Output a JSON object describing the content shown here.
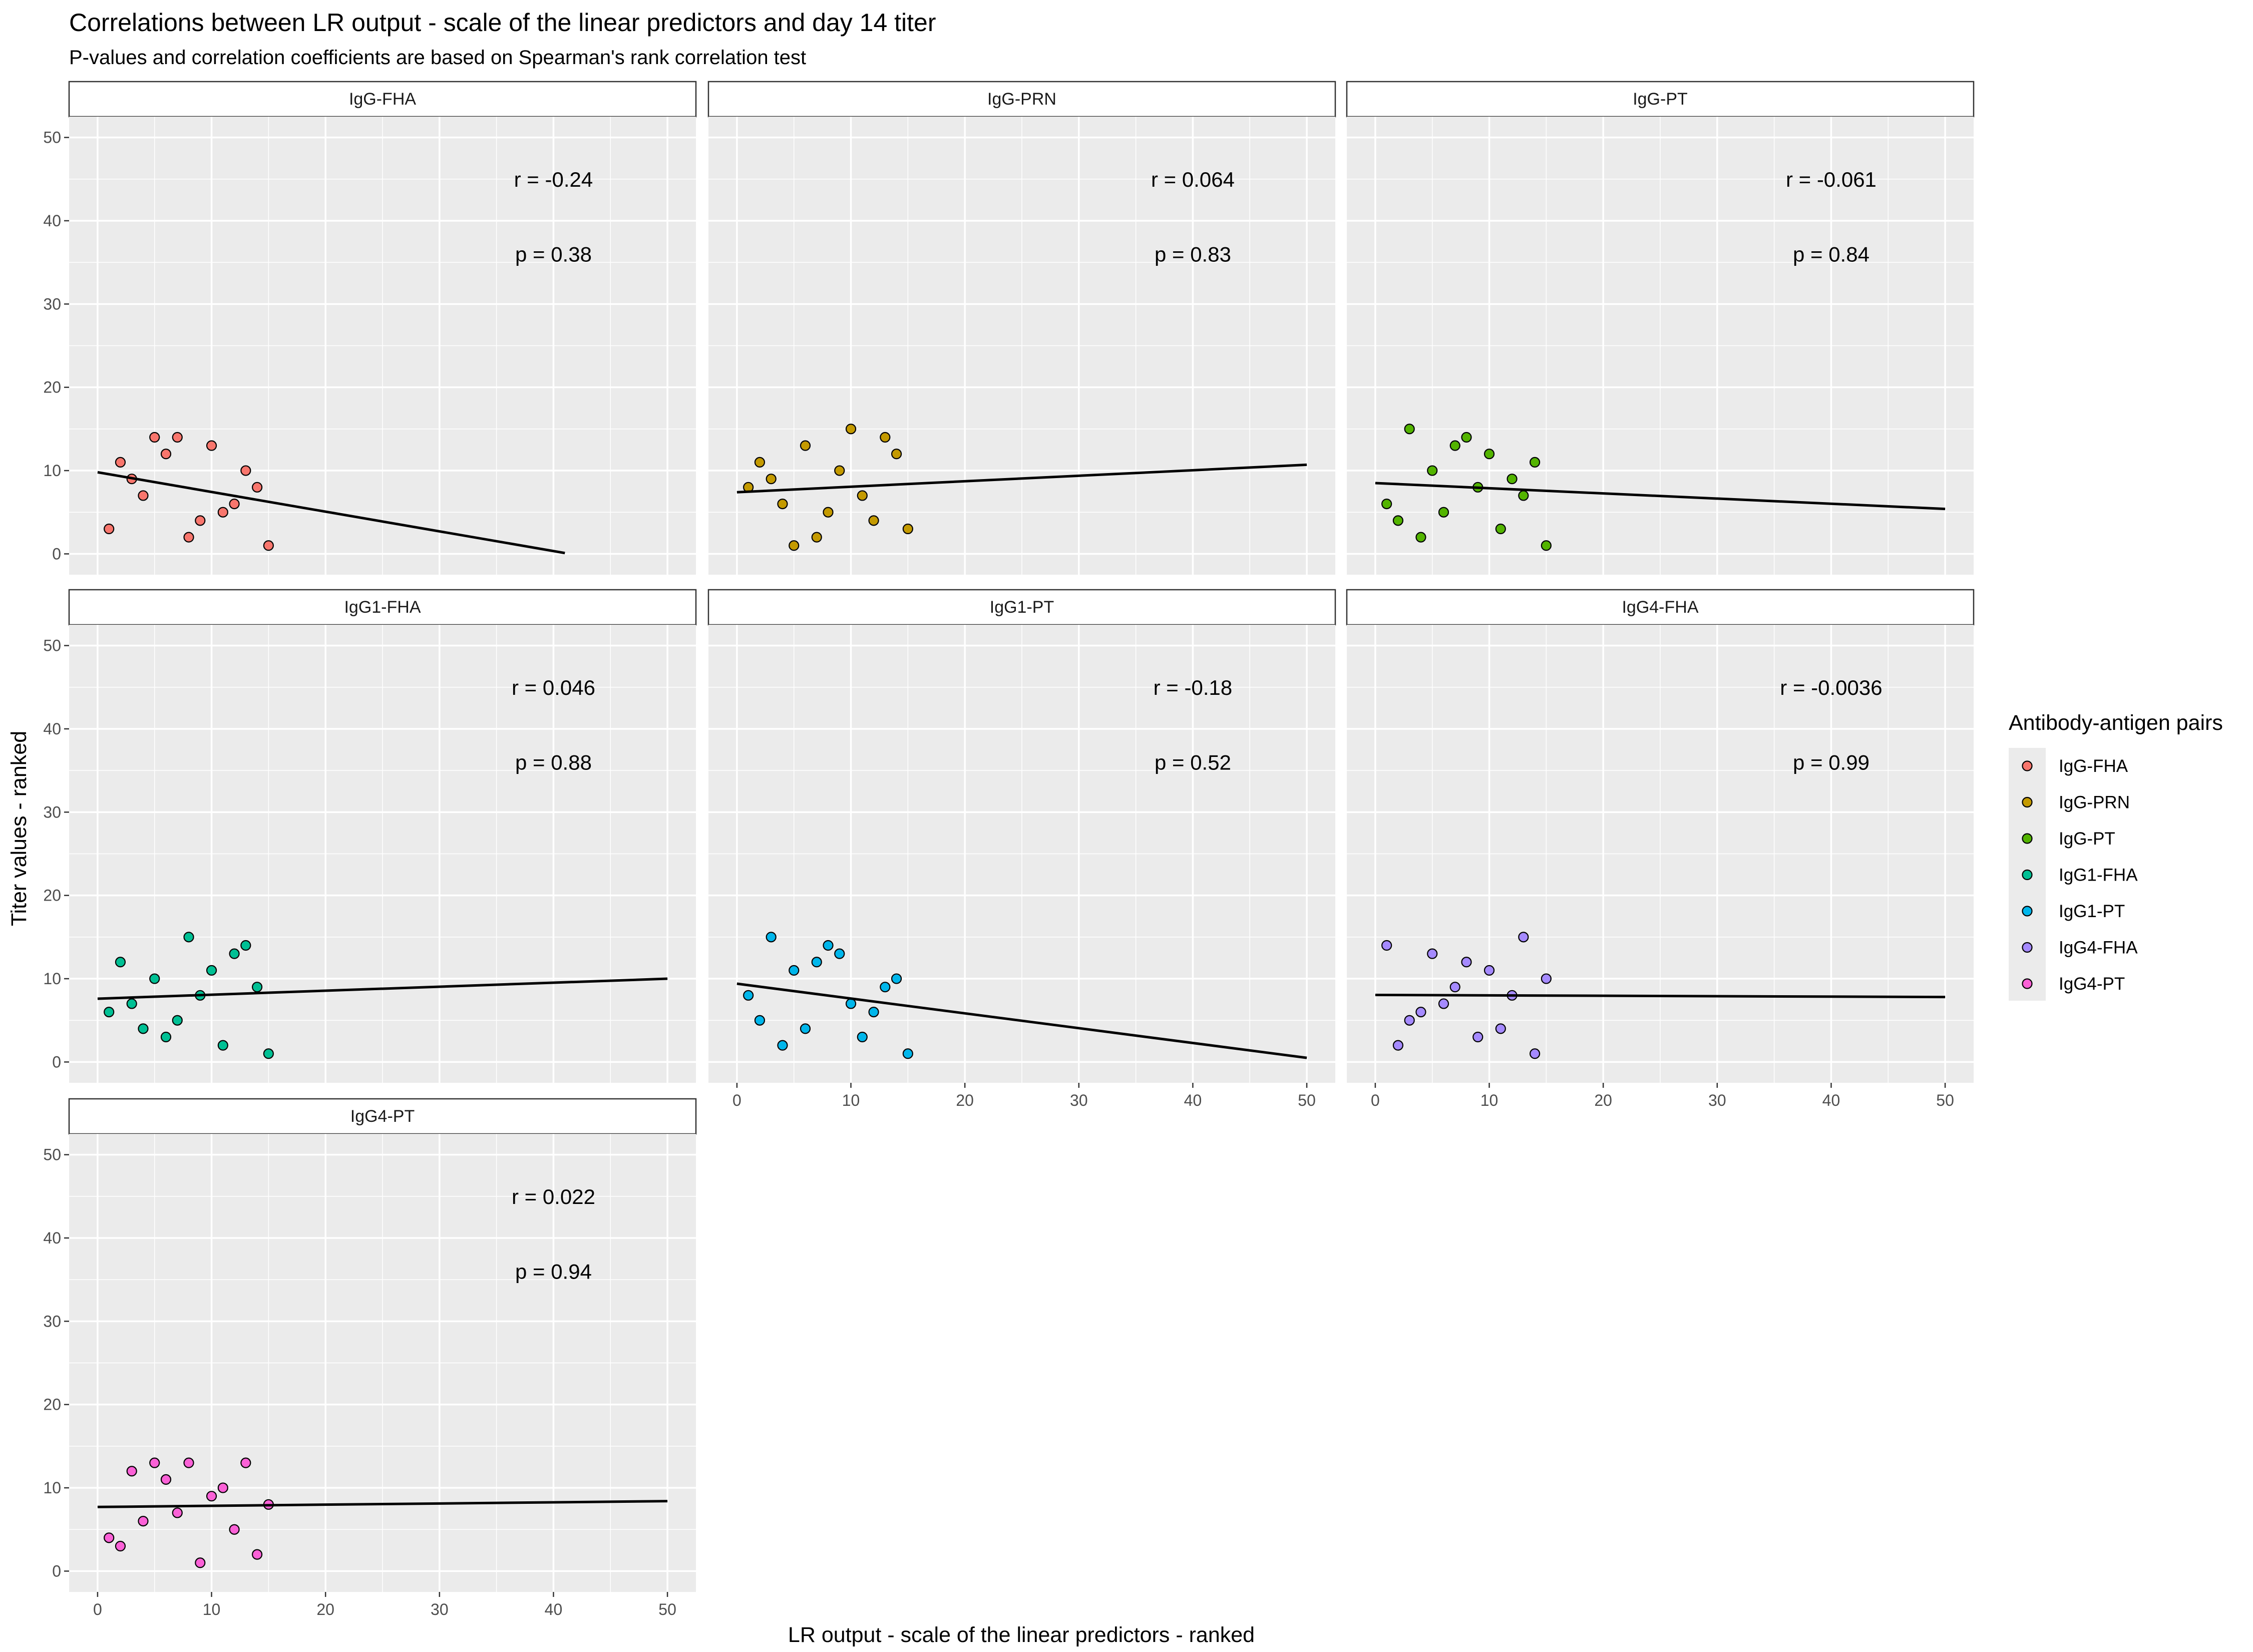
{
  "title": "Correlations between LR output - scale of the linear predictors and day 14 titer",
  "subtitle": "P-values and correlation coefficients are based on Spearman's rank correlation test",
  "chart_data": {
    "type": "scatter",
    "xlabel": "LR output - scale of the linear predictors - ranked",
    "ylabel": "Titer values - ranked",
    "xlim": [
      -2.5,
      52.5
    ],
    "ylim": [
      -2.5,
      52.5
    ],
    "xticks": [
      0,
      10,
      20,
      30,
      40,
      50
    ],
    "yticks": [
      0,
      10,
      20,
      30,
      40,
      50
    ],
    "grid": true,
    "legend": {
      "title": "Antibody-antigen pairs",
      "position": "right",
      "entries": [
        "IgG-FHA",
        "IgG-PRN",
        "IgG-PT",
        "IgG1-FHA",
        "IgG1-PT",
        "IgG4-FHA",
        "IgG4-PT"
      ]
    },
    "panels": [
      {
        "name": "IgG-FHA",
        "color": "#F8766D",
        "r_label": "r = -0.24",
        "p_label": "p = 0.38",
        "points": [
          [
            1,
            3
          ],
          [
            2,
            11
          ],
          [
            3,
            9
          ],
          [
            4,
            7
          ],
          [
            5,
            14
          ],
          [
            6,
            12
          ],
          [
            7,
            14
          ],
          [
            8,
            2
          ],
          [
            9,
            4
          ],
          [
            10,
            13
          ],
          [
            11,
            5
          ],
          [
            12,
            6
          ],
          [
            13,
            10
          ],
          [
            14,
            8
          ],
          [
            15,
            1
          ]
        ],
        "fit": [
          [
            0,
            9.8
          ],
          [
            41,
            0.1
          ]
        ]
      },
      {
        "name": "IgG-PRN",
        "color": "#C49A00",
        "r_label": "r = 0.064",
        "p_label": "p = 0.83",
        "points": [
          [
            1,
            8
          ],
          [
            2,
            11
          ],
          [
            3,
            9
          ],
          [
            4,
            6
          ],
          [
            5,
            1
          ],
          [
            6,
            13
          ],
          [
            7,
            2
          ],
          [
            8,
            5
          ],
          [
            9,
            10
          ],
          [
            10,
            15
          ],
          [
            11,
            7
          ],
          [
            12,
            4
          ],
          [
            13,
            14
          ],
          [
            14,
            12
          ],
          [
            15,
            3
          ]
        ],
        "fit": [
          [
            0,
            7.4
          ],
          [
            50,
            10.7
          ]
        ]
      },
      {
        "name": "IgG-PT",
        "color": "#53B400",
        "r_label": "r = -0.061",
        "p_label": "p = 0.84",
        "points": [
          [
            1,
            6
          ],
          [
            2,
            4
          ],
          [
            3,
            15
          ],
          [
            4,
            2
          ],
          [
            5,
            10
          ],
          [
            6,
            5
          ],
          [
            7,
            13
          ],
          [
            8,
            14
          ],
          [
            9,
            8
          ],
          [
            10,
            12
          ],
          [
            11,
            3
          ],
          [
            12,
            9
          ],
          [
            13,
            7
          ],
          [
            14,
            11
          ],
          [
            15,
            1
          ]
        ],
        "fit": [
          [
            0,
            8.5
          ],
          [
            50,
            5.4
          ]
        ]
      },
      {
        "name": "IgG1-FHA",
        "color": "#00C094",
        "r_label": "r = 0.046",
        "p_label": "p = 0.88",
        "points": [
          [
            1,
            6
          ],
          [
            2,
            12
          ],
          [
            3,
            7
          ],
          [
            4,
            4
          ],
          [
            5,
            10
          ],
          [
            6,
            3
          ],
          [
            7,
            5
          ],
          [
            8,
            15
          ],
          [
            9,
            8
          ],
          [
            10,
            11
          ],
          [
            11,
            2
          ],
          [
            12,
            13
          ],
          [
            13,
            14
          ],
          [
            14,
            9
          ],
          [
            15,
            1
          ]
        ],
        "fit": [
          [
            0,
            7.6
          ],
          [
            50,
            10.0
          ]
        ]
      },
      {
        "name": "IgG1-PT",
        "color": "#00B6EB",
        "r_label": "r = -0.18",
        "p_label": "p = 0.52",
        "points": [
          [
            1,
            8
          ],
          [
            2,
            5
          ],
          [
            3,
            15
          ],
          [
            4,
            2
          ],
          [
            5,
            11
          ],
          [
            6,
            4
          ],
          [
            7,
            12
          ],
          [
            8,
            14
          ],
          [
            9,
            13
          ],
          [
            10,
            7
          ],
          [
            11,
            3
          ],
          [
            12,
            6
          ],
          [
            13,
            9
          ],
          [
            14,
            10
          ],
          [
            15,
            1
          ]
        ],
        "fit": [
          [
            0,
            9.4
          ],
          [
            50,
            0.5
          ]
        ]
      },
      {
        "name": "IgG4-FHA",
        "color": "#A58AFF",
        "r_label": "r = -0.0036",
        "p_label": "p = 0.99",
        "points": [
          [
            1,
            14
          ],
          [
            2,
            2
          ],
          [
            3,
            5
          ],
          [
            4,
            6
          ],
          [
            5,
            13
          ],
          [
            6,
            7
          ],
          [
            7,
            9
          ],
          [
            8,
            12
          ],
          [
            9,
            3
          ],
          [
            10,
            11
          ],
          [
            11,
            4
          ],
          [
            12,
            8
          ],
          [
            13,
            15
          ],
          [
            14,
            1
          ],
          [
            15,
            10
          ]
        ],
        "fit": [
          [
            0,
            8.05
          ],
          [
            50,
            7.8
          ]
        ]
      },
      {
        "name": "IgG4-PT",
        "color": "#FB61D7",
        "r_label": "r = 0.022",
        "p_label": "p = 0.94",
        "points": [
          [
            1,
            4
          ],
          [
            2,
            3
          ],
          [
            3,
            12
          ],
          [
            4,
            6
          ],
          [
            5,
            13
          ],
          [
            6,
            11
          ],
          [
            7,
            7
          ],
          [
            8,
            13
          ],
          [
            9,
            1
          ],
          [
            10,
            9
          ],
          [
            11,
            10
          ],
          [
            12,
            5
          ],
          [
            13,
            13
          ],
          [
            14,
            2
          ],
          [
            15,
            8
          ]
        ],
        "fit": [
          [
            0,
            7.7
          ],
          [
            50,
            8.4
          ]
        ]
      }
    ]
  }
}
